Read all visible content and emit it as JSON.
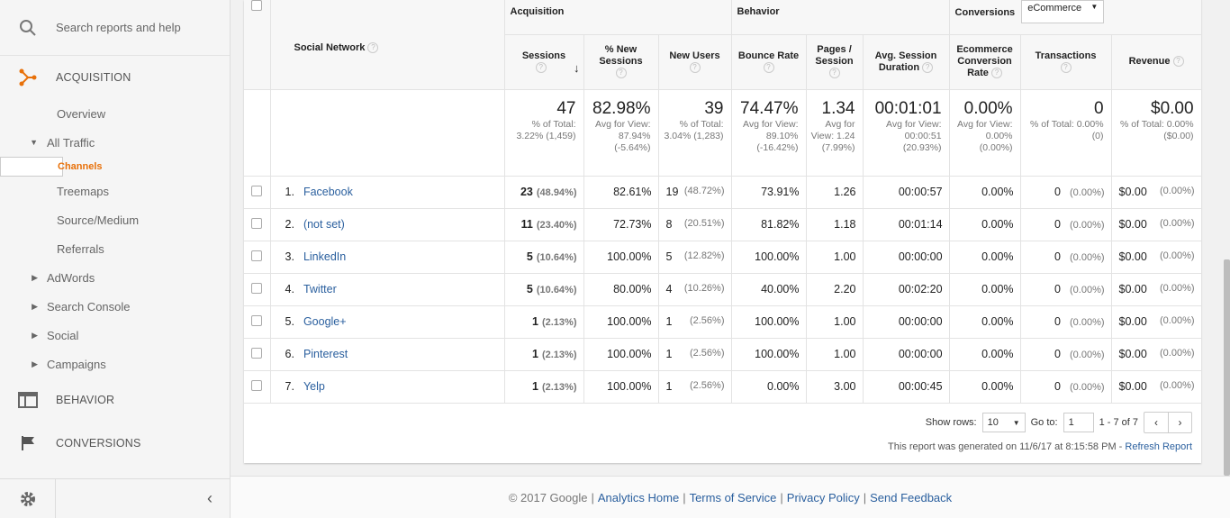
{
  "sidebar": {
    "search_placeholder": "Search reports and help",
    "acquisition": "ACQUISITION",
    "items": [
      {
        "label": "Overview"
      },
      {
        "label": "All Traffic"
      },
      {
        "label": "Channels"
      },
      {
        "label": "Treemaps"
      },
      {
        "label": "Source/Medium"
      },
      {
        "label": "Referrals"
      },
      {
        "label": "AdWords"
      },
      {
        "label": "Search Console"
      },
      {
        "label": "Social"
      },
      {
        "label": "Campaigns"
      }
    ],
    "behavior": "BEHAVIOR",
    "conversions": "CONVERSIONS"
  },
  "table": {
    "dimension_header": "Social Network",
    "groups": {
      "acquisition": "Acquisition",
      "behavior": "Behavior",
      "conversions": "Conversions",
      "conversions_select": "eCommerce"
    },
    "columns": {
      "sessions": "Sessions",
      "new_sessions": "% New Sessions",
      "new_users": "New Users",
      "bounce_rate": "Bounce Rate",
      "pages_session": "Pages / Session",
      "avg_duration": "Avg. Session Duration",
      "ecr": "Ecommerce Conversion Rate",
      "transactions": "Transactions",
      "revenue": "Revenue"
    },
    "totals": {
      "sessions": {
        "value": "47",
        "sub": "% of Total: 3.22% (1,459)"
      },
      "new_sessions": {
        "value": "82.98%",
        "sub": "Avg for View: 87.94% (-5.64%)"
      },
      "new_users": {
        "value": "39",
        "sub": "% of Total: 3.04% (1,283)"
      },
      "bounce_rate": {
        "value": "74.47%",
        "sub": "Avg for View: 89.10% (-16.42%)"
      },
      "pages_session": {
        "value": "1.34",
        "sub": "Avg for View: 1.24 (7.99%)"
      },
      "avg_duration": {
        "value": "00:01:01",
        "sub": "Avg for View: 00:00:51 (20.93%)"
      },
      "ecr": {
        "value": "0.00%",
        "sub": "Avg for View: 0.00% (0.00%)"
      },
      "transactions": {
        "value": "0",
        "sub": "% of Total: 0.00% (0)"
      },
      "revenue": {
        "value": "$0.00",
        "sub": "% of Total: 0.00% ($0.00)"
      }
    },
    "rows": [
      {
        "idx": "1.",
        "name": "Facebook",
        "sessions": "23",
        "sessions_pct": "(48.94%)",
        "new_sessions": "82.61%",
        "new_users": "19",
        "new_users_pct": "(48.72%)",
        "bounce": "73.91%",
        "pages": "1.26",
        "duration": "00:00:57",
        "ecr": "0.00%",
        "tx": "0",
        "tx_pct": "(0.00%)",
        "rev": "$0.00",
        "rev_pct": "(0.00%)"
      },
      {
        "idx": "2.",
        "name": "(not set)",
        "sessions": "11",
        "sessions_pct": "(23.40%)",
        "new_sessions": "72.73%",
        "new_users": "8",
        "new_users_pct": "(20.51%)",
        "bounce": "81.82%",
        "pages": "1.18",
        "duration": "00:01:14",
        "ecr": "0.00%",
        "tx": "0",
        "tx_pct": "(0.00%)",
        "rev": "$0.00",
        "rev_pct": "(0.00%)"
      },
      {
        "idx": "3.",
        "name": "LinkedIn",
        "sessions": "5",
        "sessions_pct": "(10.64%)",
        "new_sessions": "100.00%",
        "new_users": "5",
        "new_users_pct": "(12.82%)",
        "bounce": "100.00%",
        "pages": "1.00",
        "duration": "00:00:00",
        "ecr": "0.00%",
        "tx": "0",
        "tx_pct": "(0.00%)",
        "rev": "$0.00",
        "rev_pct": "(0.00%)"
      },
      {
        "idx": "4.",
        "name": "Twitter",
        "sessions": "5",
        "sessions_pct": "(10.64%)",
        "new_sessions": "80.00%",
        "new_users": "4",
        "new_users_pct": "(10.26%)",
        "bounce": "40.00%",
        "pages": "2.20",
        "duration": "00:02:20",
        "ecr": "0.00%",
        "tx": "0",
        "tx_pct": "(0.00%)",
        "rev": "$0.00",
        "rev_pct": "(0.00%)"
      },
      {
        "idx": "5.",
        "name": "Google+",
        "sessions": "1",
        "sessions_pct": "(2.13%)",
        "new_sessions": "100.00%",
        "new_users": "1",
        "new_users_pct": "(2.56%)",
        "bounce": "100.00%",
        "pages": "1.00",
        "duration": "00:00:00",
        "ecr": "0.00%",
        "tx": "0",
        "tx_pct": "(0.00%)",
        "rev": "$0.00",
        "rev_pct": "(0.00%)"
      },
      {
        "idx": "6.",
        "name": "Pinterest",
        "sessions": "1",
        "sessions_pct": "(2.13%)",
        "new_sessions": "100.00%",
        "new_users": "1",
        "new_users_pct": "(2.56%)",
        "bounce": "100.00%",
        "pages": "1.00",
        "duration": "00:00:00",
        "ecr": "0.00%",
        "tx": "0",
        "tx_pct": "(0.00%)",
        "rev": "$0.00",
        "rev_pct": "(0.00%)"
      },
      {
        "idx": "7.",
        "name": "Yelp",
        "sessions": "1",
        "sessions_pct": "(2.13%)",
        "new_sessions": "100.00%",
        "new_users": "1",
        "new_users_pct": "(2.56%)",
        "bounce": "0.00%",
        "pages": "3.00",
        "duration": "00:00:45",
        "ecr": "0.00%",
        "tx": "0",
        "tx_pct": "(0.00%)",
        "rev": "$0.00",
        "rev_pct": "(0.00%)"
      }
    ]
  },
  "pager": {
    "show_rows_label": "Show rows:",
    "show_rows_value": "10",
    "goto_label": "Go to:",
    "goto_value": "1",
    "range": "1 - 7 of 7",
    "generated": "This report was generated on 11/6/17 at 8:15:58 PM -",
    "refresh": "Refresh Report"
  },
  "footer": {
    "copyright": "© 2017 Google",
    "links": [
      "Analytics Home",
      "Terms of Service",
      "Privacy Policy",
      "Send Feedback"
    ]
  },
  "colors": {
    "accent": "#e8710a",
    "link": "#2a5f9e"
  }
}
